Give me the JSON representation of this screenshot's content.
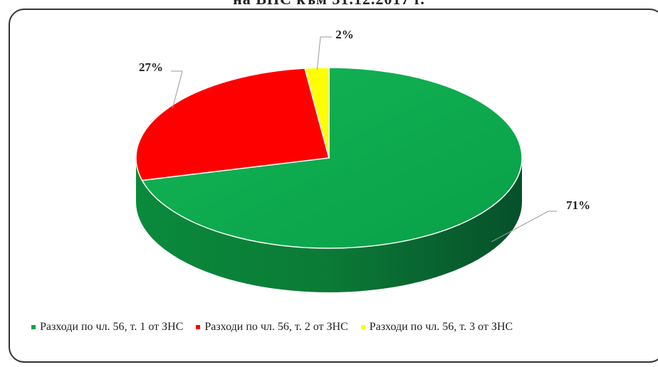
{
  "chart_data": {
    "type": "pie",
    "title_partial": "на ВНС към 31.12.2017 г.",
    "categories": [
      "Разходи по чл. 56, т. 1 от ЗНС",
      "Разходи по чл. 56, т. 2 от ЗНС",
      "Разходи по чл. 56, т. 3 от ЗНС"
    ],
    "values": [
      71,
      27,
      2
    ],
    "labels": [
      "71%",
      "27%",
      "2%"
    ],
    "colors": [
      "#00a650",
      "#ff0000",
      "#ffff00"
    ],
    "style": "3d",
    "legend_position": "bottom"
  }
}
